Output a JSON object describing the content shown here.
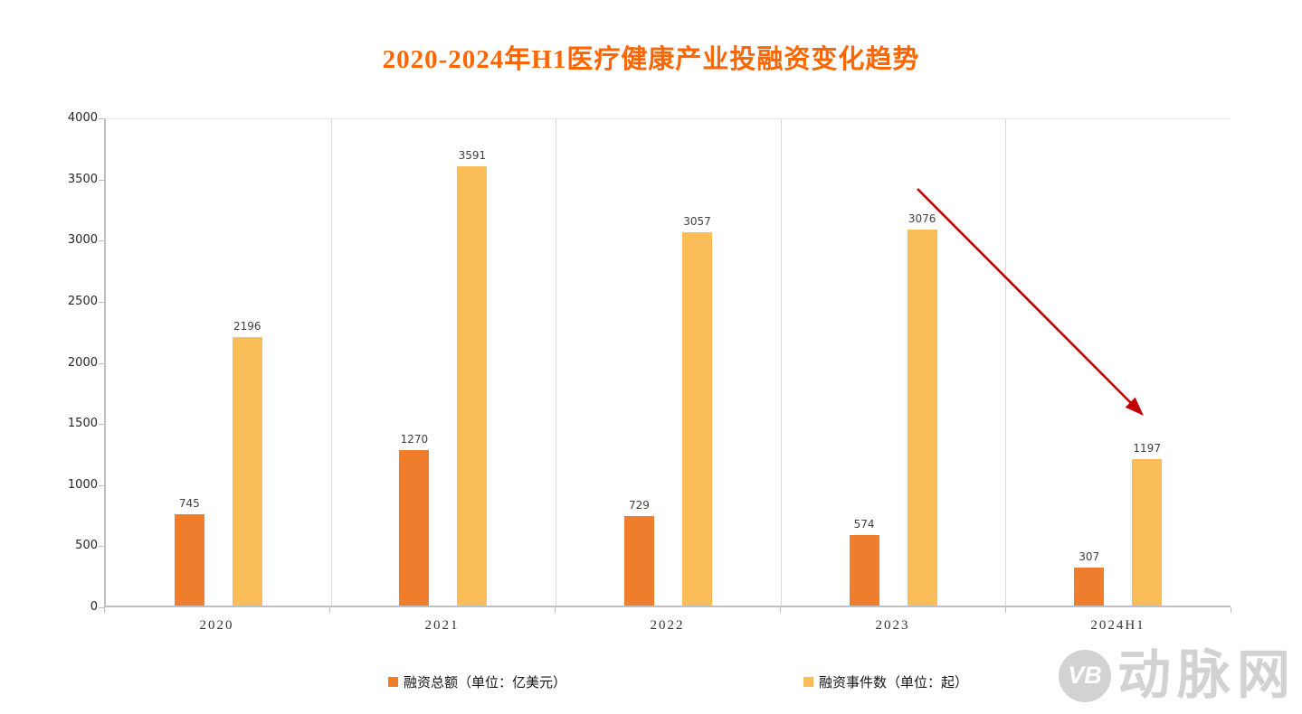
{
  "title": "2020-2024年H1医疗健康产业投融资变化趋势",
  "colors": {
    "title": "#FF6600",
    "series1": "#EE7D2E",
    "series2": "#FBBD59",
    "bar_label": "#404040",
    "axis_text": "#262626",
    "gridline": "#D9D9D9",
    "arrow": "#C00000",
    "watermark": "#D2D2D2"
  },
  "chart_data": {
    "type": "bar",
    "title": "2020-2024年H1医疗健康产业投融资变化趋势",
    "categories": [
      "2020",
      "2021",
      "2022",
      "2023",
      "2024H1"
    ],
    "series": [
      {
        "name": "融资总额（单位：亿美元）",
        "color": "#EE7D2E",
        "values": [
          745,
          1270,
          729,
          574,
          307
        ]
      },
      {
        "name": "融资事件数（单位：起）",
        "color": "#FBBD59",
        "values": [
          2196,
          3591,
          3057,
          3076,
          1197
        ]
      }
    ],
    "ylim": [
      0,
      4000
    ],
    "yticks": [
      0,
      500,
      1000,
      1500,
      2000,
      2500,
      3000,
      3500,
      4000
    ],
    "grid": "vertical category separators only",
    "legend_position": "bottom",
    "annotations": [
      "red downward arrow from above 2023 bars to 2024H1 bars indicating decline"
    ]
  },
  "legend": [
    {
      "label": "融资总额（单位：亿美元）",
      "color": "#EE7D2E"
    },
    {
      "label": "融资事件数（单位：起）",
      "color": "#FBBD59"
    }
  ],
  "watermark": {
    "logo_text": "VB",
    "brand_text": "动脉网"
  }
}
